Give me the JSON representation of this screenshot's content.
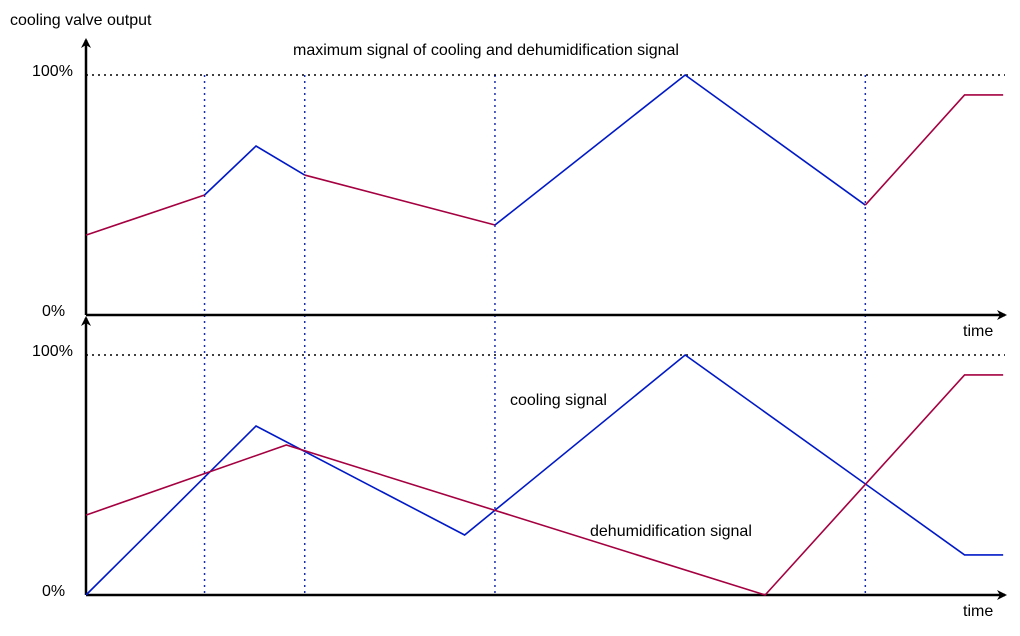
{
  "chart_data": {
    "type": "line",
    "colors": {
      "cooling": "#0019c8",
      "dehumidification": "#a50040",
      "axis": "#000000",
      "guides": "#1a2fb0"
    },
    "guide_times": [
      12.9,
      23.8,
      44.5,
      84.8
    ],
    "xlim": [
      0,
      100
    ],
    "ylim": [
      0,
      100
    ],
    "panels": [
      {
        "ylabel": "cooling valve output",
        "xlabel": "time",
        "y_ticks": [
          "100%",
          "0%"
        ],
        "title": "maximum signal of cooling and dehumidification signal",
        "segments": [
          {
            "series": "dehumidification",
            "points": [
              [
                0,
                33.3
              ],
              [
                12.9,
                50
              ]
            ]
          },
          {
            "series": "cooling",
            "points": [
              [
                12.9,
                50
              ],
              [
                18.5,
                70.4
              ],
              [
                23.8,
                58.3
              ]
            ]
          },
          {
            "series": "dehumidification",
            "points": [
              [
                23.8,
                58.3
              ],
              [
                44.5,
                37.5
              ]
            ]
          },
          {
            "series": "cooling",
            "points": [
              [
                44.5,
                37.5
              ],
              [
                65.2,
                100
              ],
              [
                84.8,
                45.8
              ]
            ]
          },
          {
            "series": "dehumidification",
            "points": [
              [
                84.8,
                45.8
              ],
              [
                95.6,
                91.7
              ],
              [
                99.8,
                91.7
              ]
            ]
          }
        ]
      },
      {
        "xlabel": "time",
        "y_ticks": [
          "100%",
          "0%"
        ],
        "series": [
          {
            "name": "cooling signal",
            "key": "cooling",
            "points": [
              [
                0,
                0
              ],
              [
                18.5,
                70.4
              ],
              [
                41.2,
                25
              ],
              [
                65.2,
                100
              ],
              [
                95.6,
                16.7
              ],
              [
                99.8,
                16.7
              ]
            ]
          },
          {
            "name": "dehumidification signal",
            "key": "dehumidification",
            "points": [
              [
                0,
                33.3
              ],
              [
                21.8,
                62.5
              ],
              [
                73.9,
                0
              ],
              [
                95.6,
                91.7
              ],
              [
                99.8,
                91.7
              ]
            ]
          }
        ]
      }
    ]
  }
}
